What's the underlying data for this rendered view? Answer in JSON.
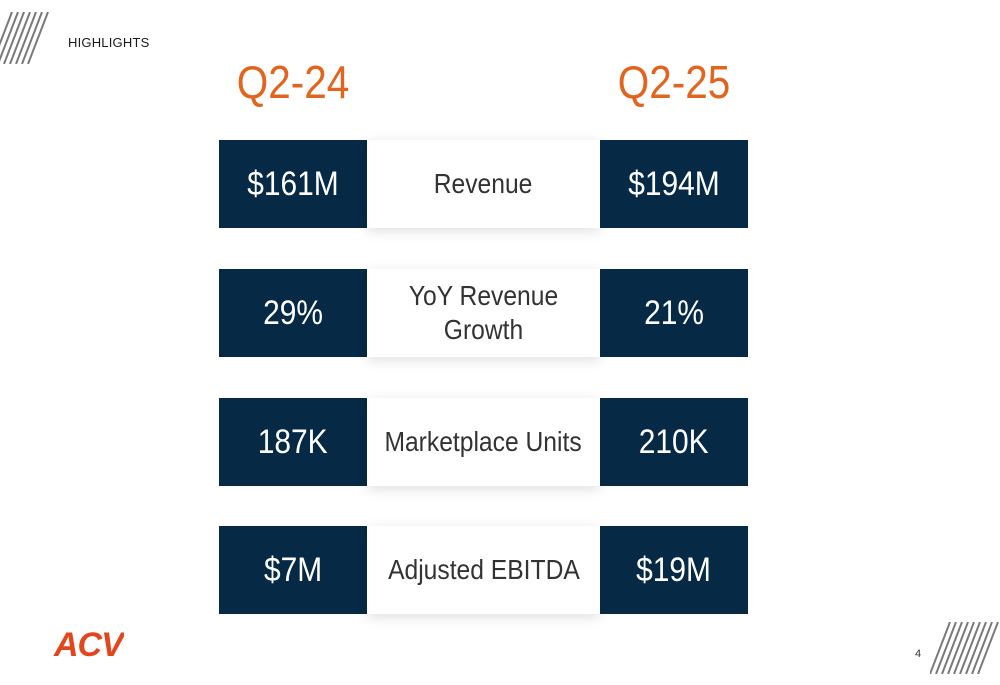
{
  "header": {
    "title": "HIGHLIGHTS"
  },
  "periods": {
    "left": "Q2-24",
    "right": "Q2-25"
  },
  "metrics": [
    {
      "label": "Revenue",
      "left": "$161M",
      "right": "$194M"
    },
    {
      "label": "YoY Revenue Growth",
      "left": "29%",
      "right": "21%"
    },
    {
      "label": "Marketplace Units",
      "left": "187K",
      "right": "210K"
    },
    {
      "label": "Adjusted EBITDA",
      "left": "$7M",
      "right": "$19M"
    }
  ],
  "logo": {
    "text": "ACV"
  },
  "footer": {
    "page_number": "4"
  },
  "colors": {
    "navy": "#062a45",
    "orange": "#e2651f"
  },
  "icons": {
    "decor": "diagonal-stripes-icon",
    "brand": "acv-logo"
  }
}
